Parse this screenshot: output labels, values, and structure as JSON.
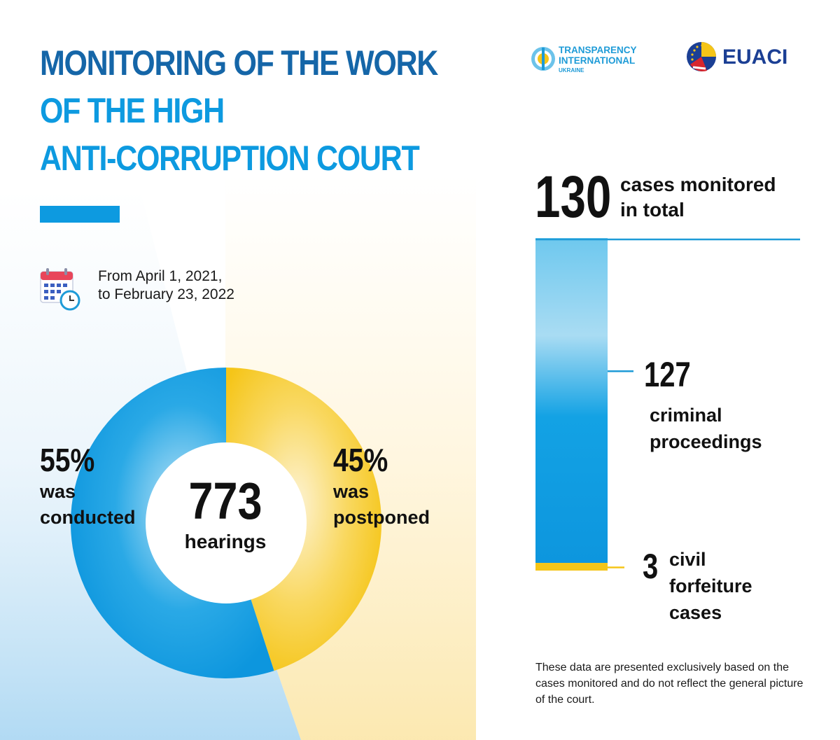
{
  "title": {
    "line1": "MONITORING OF THE WORK",
    "line2": "OF THE HIGH",
    "line3": "ANTI-CORRUPTION COURT"
  },
  "period": {
    "line1": "From April 1, 2021,",
    "line2": "to February 23, 2022"
  },
  "logos": {
    "ti_line1": "TRANSPARENCY",
    "ti_line2": "INTERNATIONAL",
    "ti_line3": "UKRAINE",
    "euaci": "EUACI"
  },
  "colors": {
    "title_dark": "#1566a8",
    "title_light": "#0d9ae0",
    "blue": "#0d9ae0",
    "yellow": "#f5c518"
  },
  "chart_data": [
    {
      "type": "pie",
      "center_value": "773",
      "center_label": "hearings",
      "slices": [
        {
          "value": 55,
          "value_label": "55%",
          "label_line1": "was",
          "label_line2": "conducted",
          "color": "#0d9ae0"
        },
        {
          "value": 45,
          "value_label": "45%",
          "label_line1": "was",
          "label_line2": "postponed",
          "color": "#f5c518"
        }
      ]
    },
    {
      "type": "bar",
      "orientation": "stacked-vertical",
      "total": 130,
      "total_label": "130",
      "total_desc_line1": "cases monitored",
      "total_desc_line2": "in total",
      "categories": [
        {
          "value": 127,
          "value_label": "127",
          "label_line1": "criminal",
          "label_line2": "proceedings",
          "color": "#0d9ae0"
        },
        {
          "value": 3,
          "value_label": "3",
          "label_line1": "civil",
          "label_line2": "forfeiture",
          "label_line3": "cases",
          "color": "#f5c518"
        }
      ]
    }
  ],
  "note": "These data are presented exclusively based on the cases monitored and do not reflect the general picture of the court."
}
